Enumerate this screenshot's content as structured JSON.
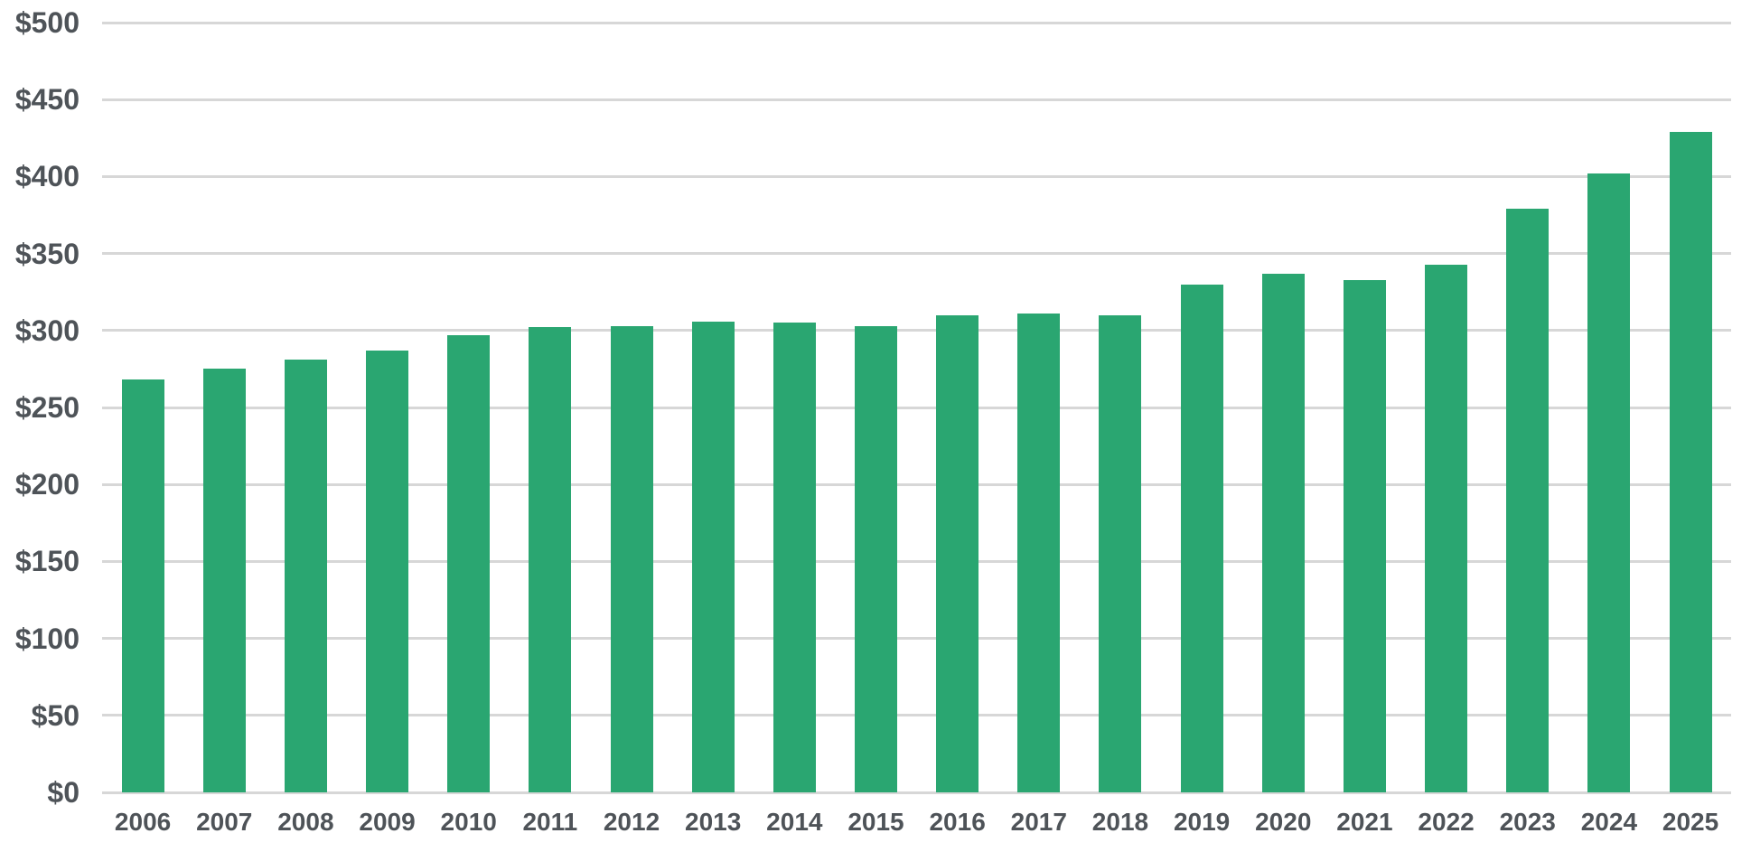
{
  "chart_data": {
    "type": "bar",
    "title": "",
    "xlabel": "",
    "ylabel": "",
    "categories": [
      "2006",
      "2007",
      "2008",
      "2009",
      "2010",
      "2011",
      "2012",
      "2013",
      "2014",
      "2015",
      "2016",
      "2017",
      "2018",
      "2019",
      "2020",
      "2021",
      "2022",
      "2023",
      "2024",
      "2025"
    ],
    "values": [
      268,
      275,
      281,
      287,
      297,
      302,
      303,
      306,
      305,
      303,
      310,
      311,
      310,
      330,
      337,
      333,
      343,
      379,
      402,
      429
    ],
    "ylim": [
      0,
      500
    ],
    "y_tick_step": 50,
    "y_tick_labels": [
      "$0",
      "$50",
      "$100",
      "$150",
      "$200",
      "$250",
      "$300",
      "$350",
      "$400",
      "$450",
      "$500"
    ],
    "grid": "horizontal-only",
    "legend": "none",
    "bar_color": "#2aa671"
  },
  "colors": {
    "bar": "#2aa671",
    "gridline": "#d7d7d7",
    "axis_text": "#4e5358",
    "background": "#ffffff"
  }
}
